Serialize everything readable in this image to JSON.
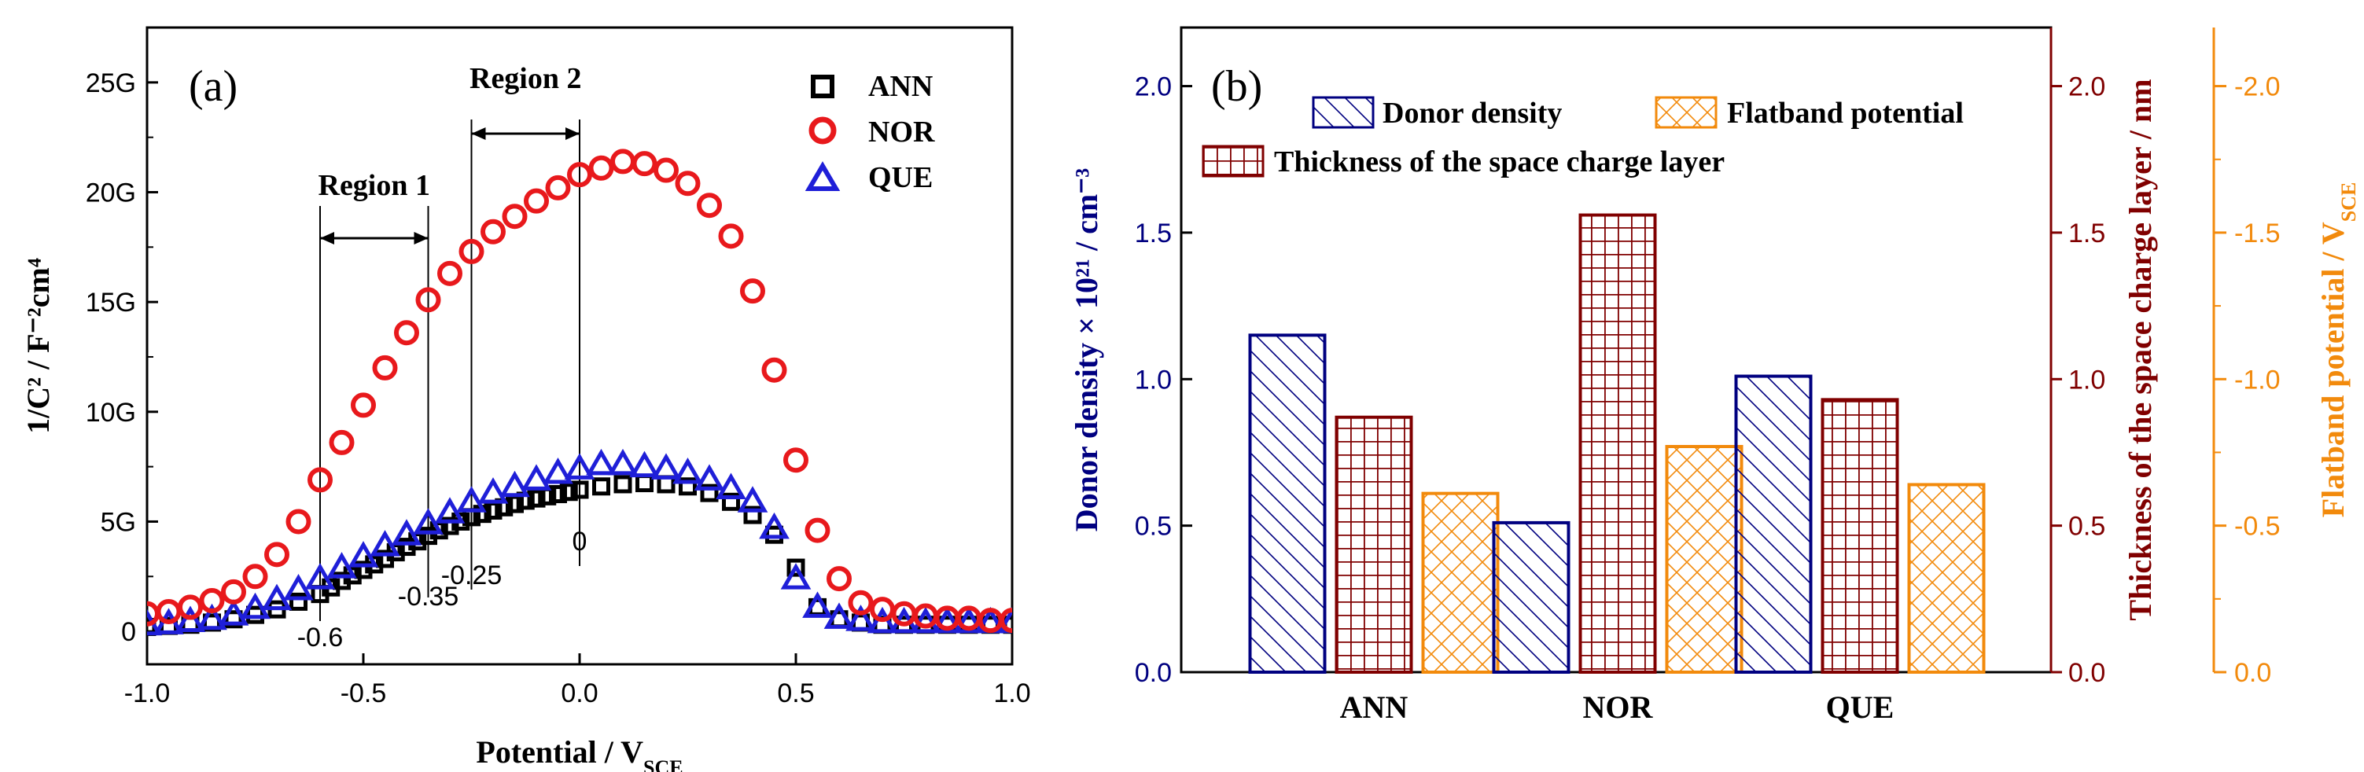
{
  "colors": {
    "ann": "#000000",
    "nor": "#e8191c",
    "que": "#1f1fd8",
    "donor": "#000080",
    "thickness": "#800000",
    "flatband": "#f28a0c"
  },
  "chart_data": [
    {
      "type": "scatter",
      "panel_label": "(a)",
      "xlabel": "Potential / V",
      "xlabel_sub": "SCE",
      "ylabel": "1/C² / F⁻²cm⁴",
      "xlim": [
        -1.0,
        1.0
      ],
      "ylim": [
        -1.5,
        27.5
      ],
      "x_ticks": [
        "-1.0",
        "-0.5",
        "0.0",
        "0.5",
        "1.0"
      ],
      "y_ticks": [
        "0",
        "5G",
        "10G",
        "15G",
        "20G",
        "25G"
      ],
      "legend": [
        "ANN",
        "NOR",
        "QUE"
      ],
      "regions": [
        {
          "label": "Region 1",
          "from": -0.6,
          "to": -0.35,
          "from_label": "-0.6",
          "to_label": "-0.35"
        },
        {
          "label": "Region 2",
          "from": -0.25,
          "to": 0.0,
          "from_label": "-0.25",
          "to_label": "0"
        }
      ],
      "series": [
        {
          "name": "ANN",
          "marker": "square",
          "x": [
            -1.0,
            -0.95,
            -0.9,
            -0.85,
            -0.8,
            -0.75,
            -0.7,
            -0.65,
            -0.6,
            -0.575,
            -0.55,
            -0.525,
            -0.5,
            -0.475,
            -0.45,
            -0.425,
            -0.4,
            -0.375,
            -0.35,
            -0.325,
            -0.3,
            -0.275,
            -0.25,
            -0.225,
            -0.2,
            -0.175,
            -0.15,
            -0.125,
            -0.1,
            -0.075,
            -0.05,
            -0.025,
            0.0,
            0.05,
            0.1,
            0.15,
            0.2,
            0.25,
            0.3,
            0.35,
            0.4,
            0.45,
            0.5,
            0.55,
            0.6,
            0.65,
            0.7,
            0.75,
            0.8,
            0.85,
            0.9,
            0.95,
            1.0
          ],
          "y": [
            0.2,
            0.25,
            0.3,
            0.4,
            0.55,
            0.75,
            1.0,
            1.35,
            1.7,
            2.0,
            2.3,
            2.55,
            2.8,
            3.05,
            3.3,
            3.6,
            3.85,
            4.1,
            4.35,
            4.6,
            4.8,
            5.0,
            5.2,
            5.35,
            5.5,
            5.65,
            5.8,
            5.95,
            6.05,
            6.15,
            6.25,
            6.35,
            6.45,
            6.6,
            6.7,
            6.75,
            6.7,
            6.6,
            6.3,
            5.9,
            5.3,
            4.4,
            2.9,
            1.1,
            0.55,
            0.4,
            0.3,
            0.3,
            0.3,
            0.3,
            0.3,
            0.3,
            0.3
          ]
        },
        {
          "name": "NOR",
          "marker": "circle",
          "x": [
            -1.0,
            -0.95,
            -0.9,
            -0.85,
            -0.8,
            -0.75,
            -0.7,
            -0.65,
            -0.6,
            -0.55,
            -0.5,
            -0.45,
            -0.4,
            -0.35,
            -0.3,
            -0.25,
            -0.2,
            -0.15,
            -0.1,
            -0.05,
            0.0,
            0.05,
            0.1,
            0.15,
            0.2,
            0.25,
            0.3,
            0.35,
            0.4,
            0.45,
            0.5,
            0.55,
            0.6,
            0.65,
            0.7,
            0.75,
            0.8,
            0.85,
            0.9,
            0.95,
            1.0
          ],
          "y": [
            0.8,
            0.9,
            1.1,
            1.4,
            1.8,
            2.5,
            3.5,
            5.0,
            6.9,
            8.6,
            10.3,
            12.0,
            13.6,
            15.1,
            16.3,
            17.3,
            18.2,
            18.9,
            19.6,
            20.2,
            20.8,
            21.1,
            21.4,
            21.3,
            21.0,
            20.4,
            19.4,
            18.0,
            15.5,
            11.9,
            7.8,
            4.6,
            2.4,
            1.3,
            1.0,
            0.8,
            0.7,
            0.6,
            0.6,
            0.5,
            0.5
          ]
        },
        {
          "name": "QUE",
          "marker": "triangle",
          "x": [
            -1.0,
            -0.95,
            -0.9,
            -0.85,
            -0.8,
            -0.75,
            -0.7,
            -0.65,
            -0.6,
            -0.55,
            -0.5,
            -0.45,
            -0.4,
            -0.35,
            -0.3,
            -0.25,
            -0.2,
            -0.15,
            -0.1,
            -0.05,
            0.0,
            0.05,
            0.1,
            0.15,
            0.2,
            0.25,
            0.3,
            0.35,
            0.4,
            0.45,
            0.5,
            0.55,
            0.6,
            0.65,
            0.7,
            0.75,
            0.8,
            0.85,
            0.9,
            0.95,
            1.0
          ],
          "y": [
            0.3,
            0.35,
            0.45,
            0.55,
            0.75,
            1.05,
            1.45,
            1.9,
            2.4,
            2.9,
            3.4,
            3.9,
            4.4,
            4.9,
            5.4,
            5.9,
            6.3,
            6.6,
            6.9,
            7.2,
            7.4,
            7.6,
            7.6,
            7.5,
            7.4,
            7.2,
            6.9,
            6.5,
            5.9,
            4.7,
            2.4,
            1.1,
            0.6,
            0.5,
            0.4,
            0.4,
            0.4,
            0.4,
            0.4,
            0.4,
            0.4
          ]
        }
      ]
    },
    {
      "type": "bar",
      "panel_label": "(b)",
      "categories": [
        "ANN",
        "NOR",
        "QUE"
      ],
      "ylabel_left": "Donor density × 10²¹ / cm⁻³",
      "ylabel_right": "Thickness of the space charge layer / nm",
      "ylabel_right2": "Flatband potential / V",
      "ylabel_right2_sub": "SCE",
      "ylim_left": [
        0,
        2.2
      ],
      "ylim_right": [
        0,
        2.2
      ],
      "ylim_right2": [
        0,
        -2.2
      ],
      "y_ticks_left": [
        "0.0",
        "0.5",
        "1.0",
        "1.5",
        "2.0"
      ],
      "y_ticks_right": [
        "0.0",
        "0.5",
        "1.0",
        "1.5",
        "2.0"
      ],
      "y_ticks_right2": [
        "0.0",
        "-0.5",
        "-1.0",
        "-1.5",
        "-2.0"
      ],
      "legend": [
        "Donor density",
        "Flatband potential",
        "Thickness of the space charge layer"
      ],
      "series": [
        {
          "name": "Donor density",
          "axis": "left",
          "values": [
            1.15,
            0.51,
            1.01
          ]
        },
        {
          "name": "Thickness of the space charge layer",
          "axis": "right",
          "values": [
            0.87,
            1.56,
            0.93
          ]
        },
        {
          "name": "Flatband potential",
          "axis": "right2",
          "values": [
            -0.61,
            -0.77,
            -0.64
          ]
        }
      ]
    }
  ]
}
